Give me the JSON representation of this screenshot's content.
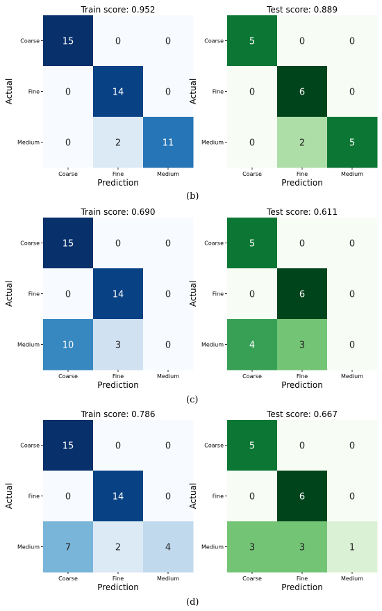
{
  "panel_labels": [
    "(b)",
    "(c)",
    "(d)"
  ],
  "chart_data": [
    {
      "type": "heatmap",
      "panel": "(b)",
      "title": "Train score: 0.952",
      "xlabel": "Prediction",
      "ylabel": "Actual",
      "colormap": "blues",
      "x": [
        "Coarse",
        "Fine",
        "Medium"
      ],
      "y": [
        "Coarse",
        "Fine",
        "Medium"
      ],
      "values": [
        [
          15,
          0,
          0
        ],
        [
          0,
          14,
          0
        ],
        [
          0,
          2,
          11
        ]
      ]
    },
    {
      "type": "heatmap",
      "panel": "(b)",
      "title": "Test score: 0.889",
      "xlabel": "Prediction",
      "ylabel": "Actual",
      "colormap": "greens",
      "x": [
        "Coarse",
        "Fine",
        "Medium"
      ],
      "y": [
        "Coarse",
        "Fine",
        "Medium"
      ],
      "values": [
        [
          5,
          0,
          0
        ],
        [
          0,
          6,
          0
        ],
        [
          0,
          2,
          5
        ]
      ]
    },
    {
      "type": "heatmap",
      "panel": "(c)",
      "title": "Train score: 0.690",
      "xlabel": "Prediction",
      "ylabel": "Actual",
      "colormap": "blues",
      "x": [
        "Coarse",
        "Fine",
        "Medium"
      ],
      "y": [
        "Coarse",
        "Fine",
        "Medium"
      ],
      "values": [
        [
          15,
          0,
          0
        ],
        [
          0,
          14,
          0
        ],
        [
          10,
          3,
          0
        ]
      ]
    },
    {
      "type": "heatmap",
      "panel": "(c)",
      "title": "Test score: 0.611",
      "xlabel": "Prediction",
      "ylabel": "Actual",
      "colormap": "greens",
      "x": [
        "Coarse",
        "Fine",
        "Medium"
      ],
      "y": [
        "Coarse",
        "Fine",
        "Medium"
      ],
      "values": [
        [
          5,
          0,
          0
        ],
        [
          0,
          6,
          0
        ],
        [
          4,
          3,
          0
        ]
      ]
    },
    {
      "type": "heatmap",
      "panel": "(d)",
      "title": "Train score: 0.786",
      "xlabel": "Prediction",
      "ylabel": "Actual",
      "colormap": "blues",
      "x": [
        "Coarse",
        "Fine",
        "Medium"
      ],
      "y": [
        "Coarse",
        "Fine",
        "Medium"
      ],
      "values": [
        [
          15,
          0,
          0
        ],
        [
          0,
          14,
          0
        ],
        [
          7,
          2,
          4
        ]
      ]
    },
    {
      "type": "heatmap",
      "panel": "(d)",
      "title": "Test score: 0.667",
      "xlabel": "Prediction",
      "ylabel": "Actual",
      "colormap": "greens",
      "x": [
        "Coarse",
        "Fine",
        "Medium"
      ],
      "y": [
        "Coarse",
        "Fine",
        "Medium"
      ],
      "values": [
        [
          5,
          0,
          0
        ],
        [
          0,
          6,
          0
        ],
        [
          3,
          3,
          1
        ]
      ]
    }
  ]
}
